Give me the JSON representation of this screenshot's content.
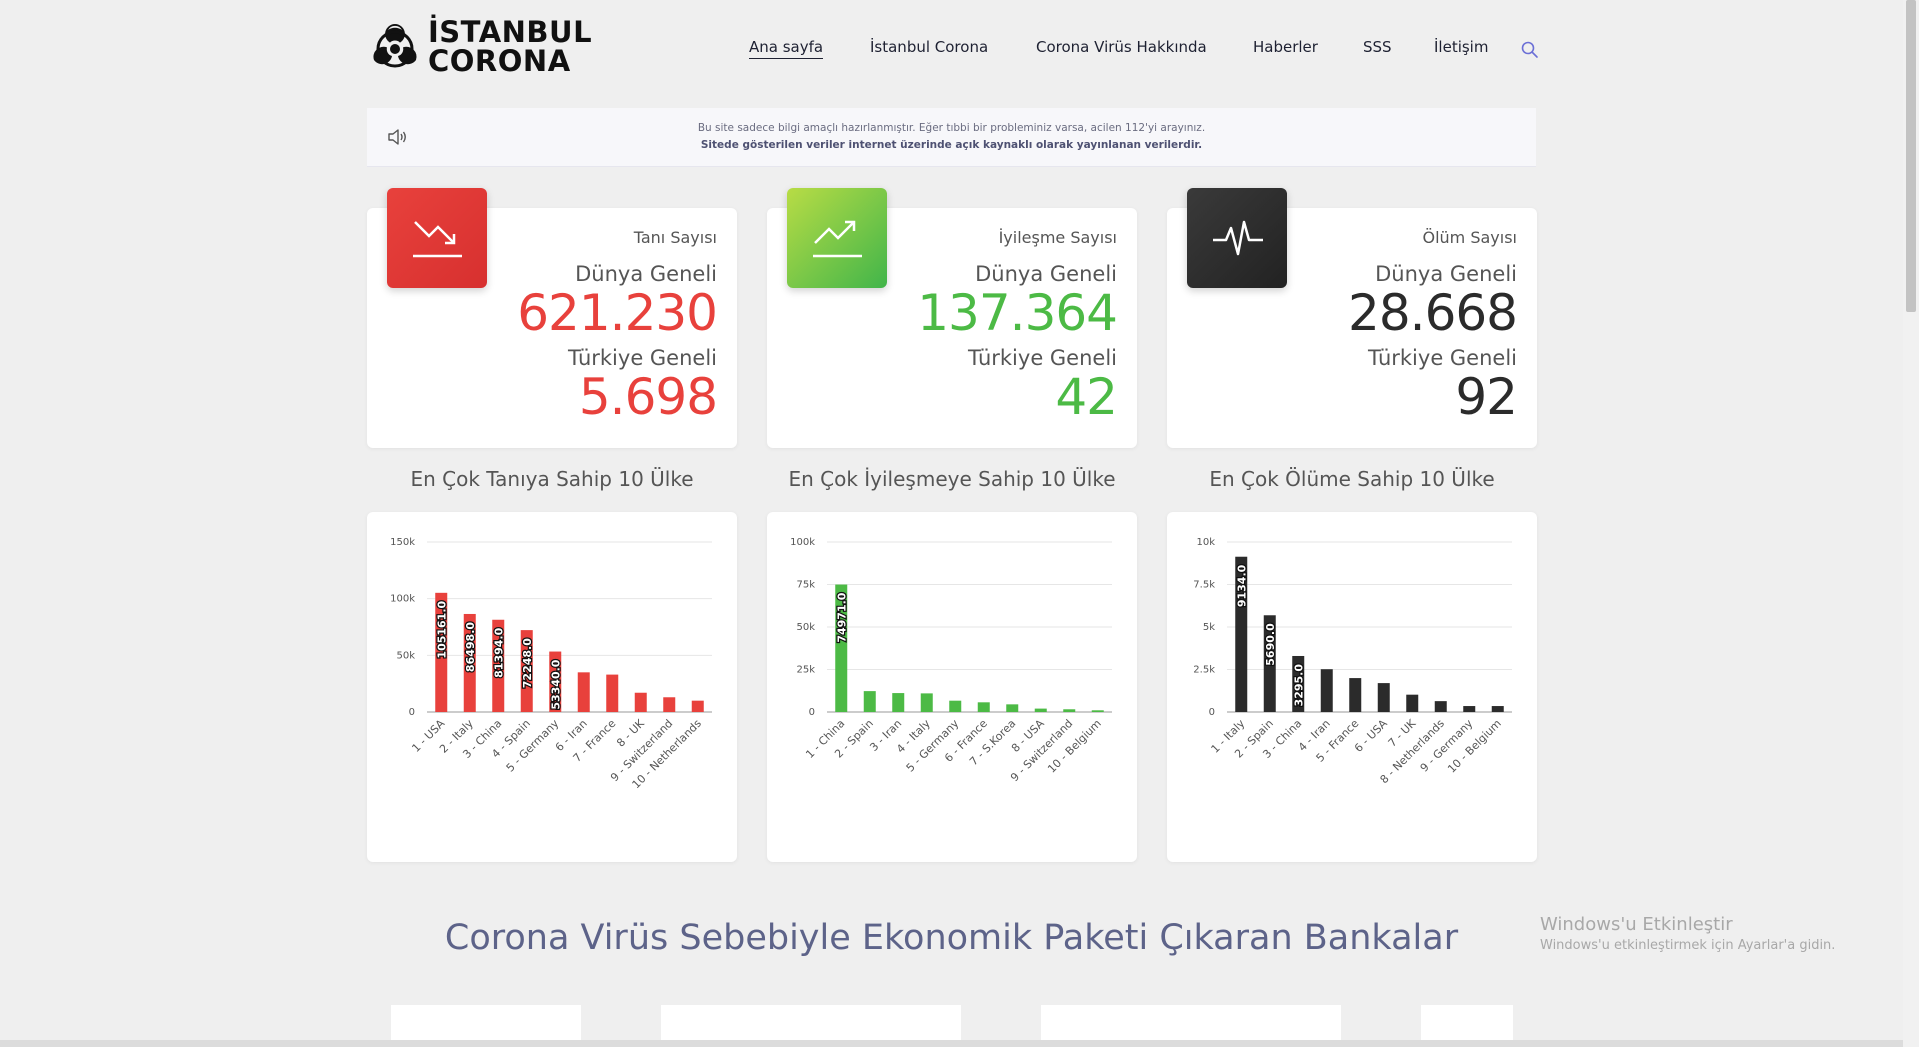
{
  "header": {
    "logo_line1": "İSTANBUL",
    "logo_line2": "CORONA",
    "nav": [
      {
        "label": "Ana sayfa",
        "active": true
      },
      {
        "label": "İstanbul Corona"
      },
      {
        "label": "Corona Virüs Hakkında"
      },
      {
        "label": "Haberler"
      },
      {
        "label": "SSS"
      },
      {
        "label": "İletişim"
      }
    ]
  },
  "notice": {
    "line1": "Bu site sadece bilgi amaçlı hazırlanmıştır. Eğer tıbbi bir probleminiz varsa, acilen 112'yi arayınız.",
    "line2": "Sitede gösterilen veriler internet üzerinde açık kaynaklı olarak yayınlanan verilerdir."
  },
  "cards": [
    {
      "label": "Tanı Sayısı",
      "world_label": "Dünya Geneli",
      "world": "621.230",
      "turkey_label": "Türkiye Geneli",
      "turkey": "5.698",
      "color": "#e8413c",
      "icon": "trend-down-icon"
    },
    {
      "label": "İyileşme Sayısı",
      "world_label": "Dünya Geneli",
      "world": "137.364",
      "turkey_label": "Türkiye Geneli",
      "turkey": "42",
      "color": "#4cba45",
      "icon": "trend-up-icon"
    },
    {
      "label": "Ölüm Sayısı",
      "world_label": "Dünya Geneli",
      "world": "28.668",
      "turkey_label": "Türkiye Geneli",
      "turkey": "92",
      "color": "#2b2b2b",
      "icon": "pulse-icon"
    }
  ],
  "chart_titles": [
    "En Çok Tanıya Sahip 10 Ülke",
    "En Çok İyileşmeye Sahip 10 Ülke",
    "En Çok Ölüme Sahip 10 Ülke"
  ],
  "chart_data": [
    {
      "type": "bar",
      "color": "#e8413c",
      "categories": [
        "1 - USA",
        "2 - Italy",
        "3 - China",
        "4 - Spain",
        "5 - Germany",
        "6 - Iran",
        "7 - France",
        "8 - UK",
        "9 - Switzerland",
        "10 - Netherlands"
      ],
      "values": [
        105161,
        86498,
        81394,
        72248,
        53340,
        35000,
        33000,
        17000,
        13000,
        10000
      ],
      "data_labels": [
        "105161.0",
        "86498.0",
        "81394.0",
        "72248.0",
        "53340.0",
        "",
        "",
        "",
        "",
        ""
      ],
      "ylim": [
        0,
        150000
      ],
      "yticks": [
        0,
        50000,
        100000,
        150000
      ],
      "ytick_labels": [
        "0",
        "50k",
        "100k",
        "150k"
      ]
    },
    {
      "type": "bar",
      "color": "#4cba45",
      "categories": [
        "1 - China",
        "2 - Spain",
        "3 - Iran",
        "4 - Italy",
        "5 - Germany",
        "6 - France",
        "7 - S.Korea",
        "8 - USA",
        "9 - Switzerland",
        "10 - Belgium"
      ],
      "values": [
        74971,
        12285,
        11133,
        10950,
        6658,
        5700,
        4500,
        2000,
        1600,
        1000
      ],
      "data_labels": [
        "74971.0",
        "",
        "",
        "",
        "",
        "",
        "",
        "",
        "",
        ""
      ],
      "ylim": [
        0,
        100000
      ],
      "yticks": [
        0,
        25000,
        50000,
        75000,
        100000
      ],
      "ytick_labels": [
        "0",
        "25k",
        "50k",
        "75k",
        "100k"
      ]
    },
    {
      "type": "bar",
      "color": "#2b2b2b",
      "categories": [
        "1 - Italy",
        "2 - Spain",
        "3 - China",
        "4 - Iran",
        "5 - France",
        "6 - USA",
        "7 - UK",
        "8 - Netherlands",
        "9 - Germany",
        "10 - Belgium"
      ],
      "values": [
        9134,
        5690,
        3295,
        2517,
        1995,
        1700,
        1019,
        639,
        350,
        350
      ],
      "data_labels": [
        "9134.0",
        "5690.0",
        "3295.0",
        "",
        "",
        "",
        "",
        "",
        "",
        ""
      ],
      "ylim": [
        0,
        10000
      ],
      "yticks": [
        0,
        2500,
        5000,
        7500,
        10000
      ],
      "ytick_labels": [
        "0",
        "2.5k",
        "5k",
        "7.5k",
        "10k"
      ]
    }
  ],
  "section_title": "Corona Virüs Sebebiyle Ekonomik Paketi Çıkaran Bankalar",
  "windows": {
    "title": "Windows'u Etkinleştir",
    "subtitle": "Windows'u etkinleştirmek için Ayarlar'a gidin."
  }
}
